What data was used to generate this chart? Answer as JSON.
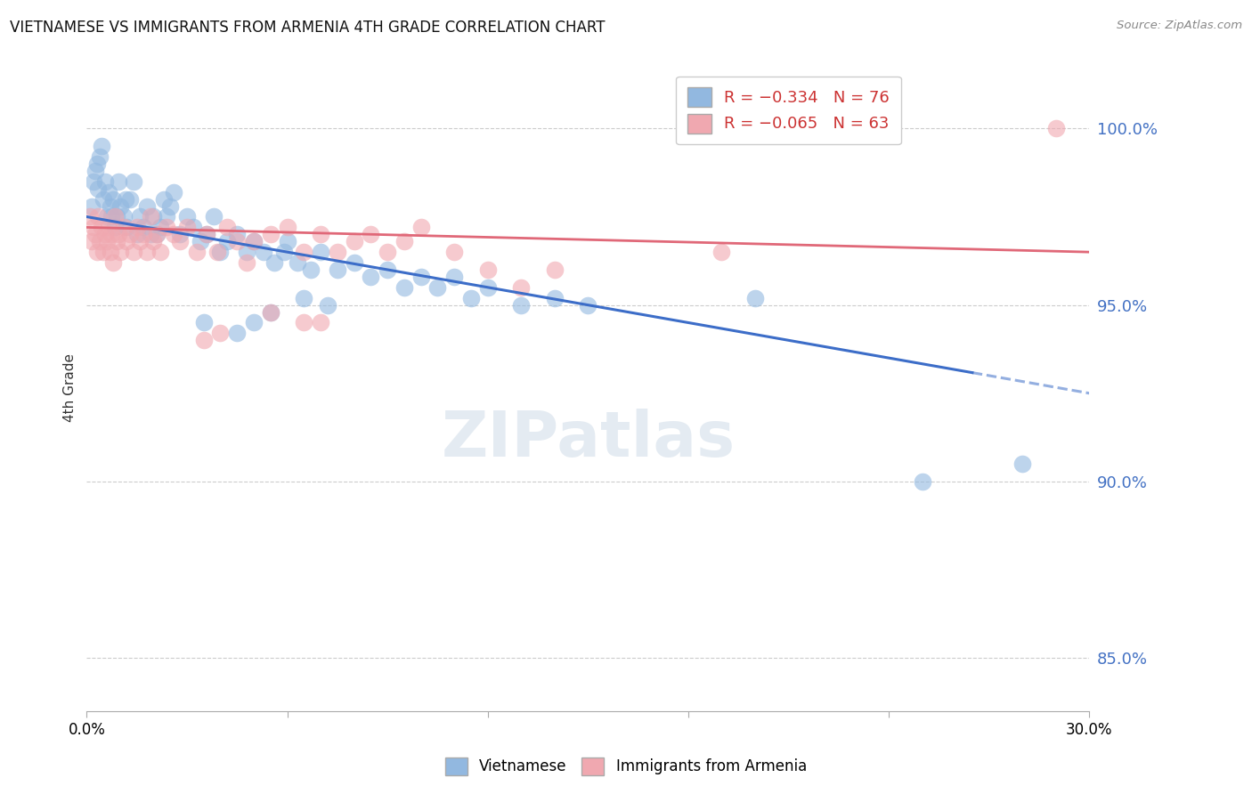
{
  "title": "VIETNAMESE VS IMMIGRANTS FROM ARMENIA 4TH GRADE CORRELATION CHART",
  "source": "Source: ZipAtlas.com",
  "ylabel": "4th Grade",
  "ylabel_right_ticks": [
    85.0,
    90.0,
    95.0,
    100.0
  ],
  "xmin": 0.0,
  "xmax": 30.0,
  "ymin": 83.5,
  "ymax": 101.8,
  "color_blue": "#92b8e0",
  "color_pink": "#f0a8b0",
  "color_blue_line": "#3c6dc8",
  "color_pink_line": "#e06878",
  "watermark": "ZIPatlas",
  "blue_trendline_x0": 0.0,
  "blue_trendline_y0": 97.5,
  "blue_trendline_x1": 30.0,
  "blue_trendline_y1": 92.5,
  "blue_solid_end": 26.5,
  "pink_trendline_x0": 0.0,
  "pink_trendline_y0": 97.2,
  "pink_trendline_x1": 30.0,
  "pink_trendline_y1": 96.5,
  "blue_points": [
    [
      0.15,
      97.8
    ],
    [
      0.2,
      98.5
    ],
    [
      0.25,
      98.8
    ],
    [
      0.3,
      99.0
    ],
    [
      0.35,
      98.3
    ],
    [
      0.4,
      99.2
    ],
    [
      0.45,
      99.5
    ],
    [
      0.5,
      98.0
    ],
    [
      0.55,
      98.5
    ],
    [
      0.6,
      97.5
    ],
    [
      0.65,
      98.2
    ],
    [
      0.7,
      97.8
    ],
    [
      0.75,
      97.5
    ],
    [
      0.8,
      98.0
    ],
    [
      0.85,
      97.2
    ],
    [
      0.9,
      97.5
    ],
    [
      0.95,
      98.5
    ],
    [
      1.0,
      97.8
    ],
    [
      1.1,
      97.5
    ],
    [
      1.15,
      98.0
    ],
    [
      1.2,
      97.2
    ],
    [
      1.3,
      98.0
    ],
    [
      1.4,
      98.5
    ],
    [
      1.5,
      97.0
    ],
    [
      1.6,
      97.5
    ],
    [
      1.7,
      97.2
    ],
    [
      1.8,
      97.8
    ],
    [
      1.9,
      97.0
    ],
    [
      2.0,
      97.5
    ],
    [
      2.1,
      97.0
    ],
    [
      2.2,
      97.2
    ],
    [
      2.3,
      98.0
    ],
    [
      2.4,
      97.5
    ],
    [
      2.5,
      97.8
    ],
    [
      2.6,
      98.2
    ],
    [
      2.8,
      97.0
    ],
    [
      3.0,
      97.5
    ],
    [
      3.2,
      97.2
    ],
    [
      3.4,
      96.8
    ],
    [
      3.6,
      97.0
    ],
    [
      3.8,
      97.5
    ],
    [
      4.0,
      96.5
    ],
    [
      4.2,
      96.8
    ],
    [
      4.5,
      97.0
    ],
    [
      4.8,
      96.5
    ],
    [
      5.0,
      96.8
    ],
    [
      5.3,
      96.5
    ],
    [
      5.6,
      96.2
    ],
    [
      5.9,
      96.5
    ],
    [
      6.0,
      96.8
    ],
    [
      6.3,
      96.2
    ],
    [
      6.7,
      96.0
    ],
    [
      7.0,
      96.5
    ],
    [
      7.5,
      96.0
    ],
    [
      8.0,
      96.2
    ],
    [
      8.5,
      95.8
    ],
    [
      9.0,
      96.0
    ],
    [
      9.5,
      95.5
    ],
    [
      10.0,
      95.8
    ],
    [
      10.5,
      95.5
    ],
    [
      11.0,
      95.8
    ],
    [
      11.5,
      95.2
    ],
    [
      12.0,
      95.5
    ],
    [
      13.0,
      95.0
    ],
    [
      14.0,
      95.2
    ],
    [
      15.0,
      95.0
    ],
    [
      5.0,
      94.5
    ],
    [
      5.5,
      94.8
    ],
    [
      6.5,
      95.2
    ],
    [
      7.2,
      95.0
    ],
    [
      4.5,
      94.2
    ],
    [
      3.5,
      94.5
    ],
    [
      20.0,
      95.2
    ],
    [
      25.0,
      90.0
    ],
    [
      28.0,
      90.5
    ]
  ],
  "pink_points": [
    [
      0.1,
      97.5
    ],
    [
      0.15,
      96.8
    ],
    [
      0.2,
      97.2
    ],
    [
      0.25,
      97.0
    ],
    [
      0.3,
      96.5
    ],
    [
      0.35,
      97.5
    ],
    [
      0.4,
      96.8
    ],
    [
      0.45,
      97.2
    ],
    [
      0.5,
      96.5
    ],
    [
      0.55,
      97.0
    ],
    [
      0.6,
      96.8
    ],
    [
      0.65,
      97.2
    ],
    [
      0.7,
      96.5
    ],
    [
      0.75,
      97.0
    ],
    [
      0.8,
      96.2
    ],
    [
      0.85,
      97.5
    ],
    [
      0.9,
      96.8
    ],
    [
      0.95,
      97.0
    ],
    [
      1.0,
      96.5
    ],
    [
      1.1,
      97.2
    ],
    [
      1.2,
      96.8
    ],
    [
      1.3,
      97.0
    ],
    [
      1.4,
      96.5
    ],
    [
      1.5,
      97.2
    ],
    [
      1.6,
      96.8
    ],
    [
      1.7,
      97.0
    ],
    [
      1.8,
      96.5
    ],
    [
      1.9,
      97.5
    ],
    [
      2.0,
      96.8
    ],
    [
      2.1,
      97.0
    ],
    [
      2.2,
      96.5
    ],
    [
      2.4,
      97.2
    ],
    [
      2.6,
      97.0
    ],
    [
      2.8,
      96.8
    ],
    [
      3.0,
      97.2
    ],
    [
      3.3,
      96.5
    ],
    [
      3.6,
      97.0
    ],
    [
      3.9,
      96.5
    ],
    [
      4.2,
      97.2
    ],
    [
      4.5,
      96.8
    ],
    [
      4.8,
      96.2
    ],
    [
      5.0,
      96.8
    ],
    [
      5.5,
      97.0
    ],
    [
      6.0,
      97.2
    ],
    [
      6.5,
      96.5
    ],
    [
      7.0,
      97.0
    ],
    [
      7.5,
      96.5
    ],
    [
      8.0,
      96.8
    ],
    [
      8.5,
      97.0
    ],
    [
      9.0,
      96.5
    ],
    [
      9.5,
      96.8
    ],
    [
      10.0,
      97.2
    ],
    [
      11.0,
      96.5
    ],
    [
      12.0,
      96.0
    ],
    [
      13.0,
      95.5
    ],
    [
      14.0,
      96.0
    ],
    [
      5.5,
      94.8
    ],
    [
      6.5,
      94.5
    ],
    [
      4.0,
      94.2
    ],
    [
      3.5,
      94.0
    ],
    [
      7.0,
      94.5
    ],
    [
      29.0,
      100.0
    ],
    [
      19.0,
      96.5
    ]
  ]
}
